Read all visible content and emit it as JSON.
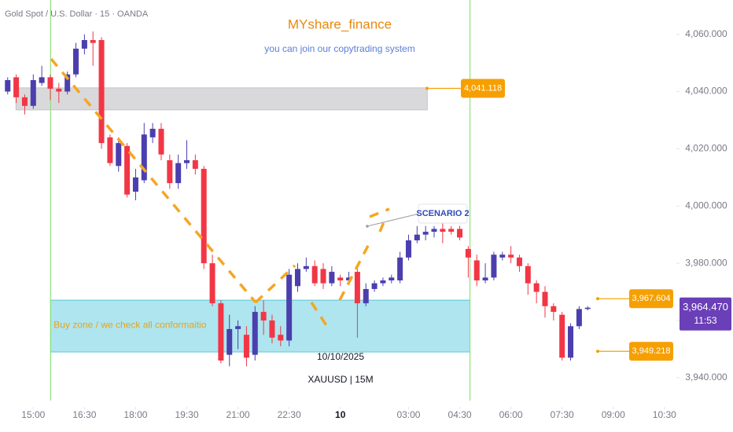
{
  "chart_data": {
    "type": "candlestick",
    "header": "Gold Spot / U.S. Dollar · 15 · OANDA",
    "title": "MYshare_finance",
    "subtitle": "you can join our copytrading system",
    "open": [
      4040,
      4045,
      4038,
      4035,
      4043,
      4045,
      4041,
      4040,
      4046,
      4055,
      4058,
      4058,
      4024,
      4014,
      4021,
      4005,
      4009,
      4024,
      4027,
      4016,
      4008,
      4015,
      4016,
      4013,
      3980,
      3966,
      3948,
      3957,
      3955,
      3948,
      3963,
      3960,
      3955,
      3953,
      3972,
      3978,
      3979,
      3978,
      3973,
      3975,
      3974,
      3977,
      3966,
      3971,
      3973,
      3974,
      3974,
      3982,
      3988,
      3990,
      3991,
      3992,
      3992,
      3992,
      3985,
      3981,
      3974,
      3975,
      3982,
      3983,
      3982,
      3979,
      3973,
      3970,
      3965,
      3962,
      3947,
      3958,
      3964
    ],
    "high": [
      4045,
      4046,
      4039,
      4046,
      4049,
      4046,
      4043,
      4047,
      4057,
      4060,
      4061,
      4059,
      4025,
      4024,
      4022,
      4013,
      4029,
      4029,
      4029,
      4018,
      4018,
      4023,
      4018,
      4014,
      3983,
      3967,
      3962,
      3960,
      3958,
      3965,
      3967,
      3962,
      3958,
      3978,
      3980,
      3982,
      3981,
      3980,
      3979,
      3976,
      3977,
      3978,
      3973,
      3974,
      3975,
      3976,
      3984,
      3990,
      3993,
      3993,
      3993,
      3994,
      3993,
      3993,
      3986,
      3983,
      3980,
      3984,
      3984,
      3986,
      3983,
      3980,
      3974,
      3972,
      3966,
      3963,
      3959,
      3965,
      3965
    ],
    "low": [
      4039,
      4036,
      4032,
      4034,
      4042,
      4037,
      4036,
      4039,
      4045,
      4053,
      4049,
      4020,
      4014,
      4012,
      4003,
      4002,
      4008,
      4022,
      4016,
      4006,
      4006,
      4013,
      4011,
      3978,
      3965,
      3945,
      3944,
      3950,
      3944,
      3946,
      3955,
      3952,
      3951,
      3951,
      3970,
      3977,
      3972,
      3971,
      3972,
      3972,
      3973,
      3954,
      3965,
      3970,
      3972,
      3973,
      3973,
      3981,
      3987,
      3988,
      3989,
      3987,
      3990,
      3988,
      3975,
      3972,
      3973,
      3974,
      3981,
      3980,
      3977,
      3969,
      3966,
      3961,
      3960,
      3946,
      3946,
      3957,
      3963.5
    ],
    "close": [
      4044,
      4038,
      4035,
      4044,
      4045,
      4041,
      4040,
      4046,
      4055,
      4058,
      4057,
      4022,
      4015,
      4022,
      4004,
      4010,
      4025,
      4027,
      4018,
      4008,
      4015,
      4016,
      4013,
      3980,
      3966,
      3946,
      3957,
      3958,
      3947,
      3963,
      3960,
      3954,
      3953,
      3976,
      3978,
      3979,
      3973,
      3973,
      3977,
      3974,
      3975,
      3966,
      3971,
      3973,
      3974,
      3975,
      3982,
      3988,
      3990,
      3991,
      3992,
      3991,
      3991,
      3989,
      3982,
      3974,
      3975,
      3983,
      3983,
      3982,
      3979,
      3973,
      3970,
      3965,
      3963,
      3947,
      3958,
      3964,
      3964.47
    ],
    "up_color": "#4b3fae",
    "down_color": "#f23645",
    "xlim": [
      -0.9,
      78.4
    ],
    "xticks": [
      {
        "value": 3,
        "label": "15:00"
      },
      {
        "value": 9,
        "label": "16:30"
      },
      {
        "value": 15,
        "label": "18:00"
      },
      {
        "value": 21,
        "label": "19:30"
      },
      {
        "value": 27,
        "label": "21:00"
      },
      {
        "value": 33,
        "label": "22:30"
      },
      {
        "value": 39,
        "label": "10"
      },
      {
        "value": 47,
        "label": "03:00"
      },
      {
        "value": 53,
        "label": "04:30"
      },
      {
        "value": 59,
        "label": "06:00"
      },
      {
        "value": 65,
        "label": "07:30"
      },
      {
        "value": 71,
        "label": "09:00"
      },
      {
        "value": 77,
        "label": "10:30"
      }
    ],
    "ylim": [
      3932,
      4072
    ],
    "yticks": [
      {
        "value": 3940,
        "label": "3,940.000"
      },
      {
        "value": 3960,
        "label": "3,960.000"
      },
      {
        "value": 3980,
        "label": "3,980.000"
      },
      {
        "value": 4000,
        "label": "4,000.000"
      },
      {
        "value": 4020,
        "label": "4,020.000"
      },
      {
        "value": 4040,
        "label": "4,040.000"
      },
      {
        "value": 4060,
        "label": "4,060.000"
      }
    ],
    "zones": [
      {
        "top": 4041.3,
        "bottom": 4033.6,
        "start": 0.97,
        "end": 49.2,
        "color": "#d9d9db"
      },
      {
        "top": 3967.1,
        "bottom": 3949,
        "start": 5.03,
        "end": 54.2,
        "color": "#aee5ef",
        "label": "Buy zone / we check all conformaitio"
      }
    ],
    "vlines": [
      5.03,
      54.2
    ],
    "price_labels": [
      {
        "value": 4041.118,
        "label": "4,041.118"
      },
      {
        "value": 3967.604,
        "label": "3,967.604"
      },
      {
        "value": 3949.218,
        "label": "3,949.218"
      }
    ],
    "last_price": {
      "value": 3964.47,
      "label": "3,964.470",
      "countdown": "11:53"
    },
    "annotations": {
      "date": "10/10/2025",
      "symbol": "XAUUSD | 15M",
      "scenario": "SCENARIO 2"
    }
  }
}
